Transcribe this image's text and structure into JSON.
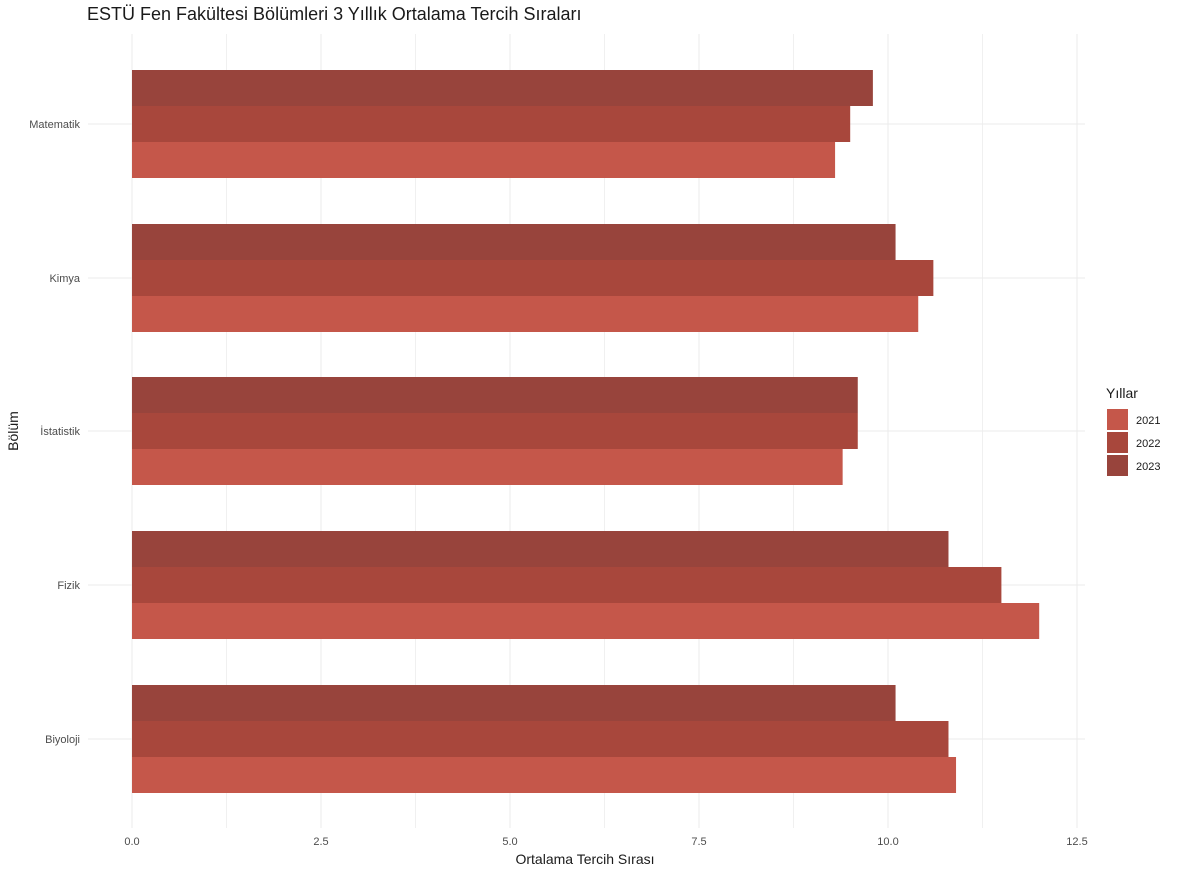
{
  "chart_data": {
    "type": "bar",
    "orientation": "horizontal",
    "title": "ESTÜ Fen Fakültesi Bölümleri 3 Yıllık Ortalama Tercih Sıraları",
    "xlabel": "Ortalama Tercih Sırası",
    "ylabel": "Bölüm",
    "categories": [
      "Matematik",
      "Kimya",
      "İstatistik",
      "Fizik",
      "Biyoloji"
    ],
    "series": [
      {
        "name": "2021",
        "color": "#c5574a",
        "values": [
          9.3,
          10.4,
          9.4,
          12.0,
          10.9
        ]
      },
      {
        "name": "2022",
        "color": "#a8473c",
        "values": [
          9.5,
          10.6,
          9.6,
          11.5,
          10.8
        ]
      },
      {
        "name": "2023",
        "color": "#98443c",
        "values": [
          9.8,
          10.1,
          9.6,
          10.8,
          10.1
        ]
      }
    ],
    "xlim": [
      0,
      12.5
    ],
    "xticks": [
      "0.0",
      "2.5",
      "5.0",
      "7.5",
      "10.0",
      "12.5"
    ],
    "grid": true,
    "legend": {
      "title": "Yıllar",
      "position": "right"
    }
  }
}
